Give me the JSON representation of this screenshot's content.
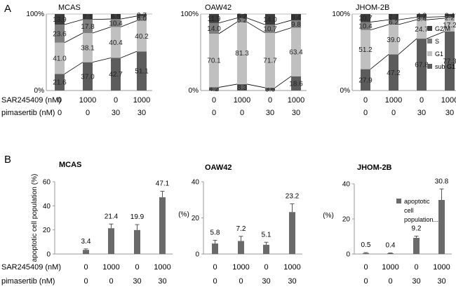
{
  "figure": {
    "panel_a_letter": "A",
    "panel_b_letter": "B",
    "row_labels": {
      "sar": "SAR245409 (nM)",
      "pim": "pimasertib (nM)"
    },
    "conditions": {
      "sar": [
        "0",
        "1000",
        "0",
        "1000"
      ],
      "pim": [
        "0",
        "0",
        "30",
        "30"
      ]
    },
    "colors": {
      "g2m": "#3c3c3c",
      "s": "#7e7e7e",
      "g1": "#c0c0c0",
      "subg1": "#5c5c5c",
      "bar_b": "#6a6a6a"
    }
  },
  "chart_data": [
    {
      "type": "bar",
      "stacked": true,
      "title": "MCAS",
      "categories": [
        "0/0",
        "1000/0",
        "0/30",
        "1000/30"
      ],
      "series": [
        {
          "name": "sub G1",
          "values": [
            21.6,
            37.0,
            42.7,
            51.1
          ]
        },
        {
          "name": "G1",
          "values": [
            41.0,
            38.1,
            40.4,
            40.2
          ]
        },
        {
          "name": "S",
          "values": [
            23.6,
            17.8,
            10.4,
            6.0
          ]
        },
        {
          "name": "G2/M",
          "values": [
            13.9,
            7.1,
            6.5,
            2.7
          ]
        }
      ],
      "ylim": [
        0,
        100
      ],
      "ytick_labels": [
        "0%",
        "100%"
      ]
    },
    {
      "type": "bar",
      "stacked": true,
      "title": "OAW42",
      "categories": [
        "0/0",
        "1000/0",
        "0/30",
        "1000/30"
      ],
      "series": [
        {
          "name": "sub G1",
          "values": [
            4.2,
            8.3,
            3.6,
            18.6
          ]
        },
        {
          "name": "G1",
          "values": [
            70.1,
            81.3,
            71.7,
            63.4
          ]
        },
        {
          "name": "S",
          "values": [
            14.0,
            5.2,
            10.7,
            9.8
          ]
        },
        {
          "name": "G2/M",
          "values": [
            11.9,
            5.2,
            14.0,
            8.4
          ]
        }
      ],
      "ylim": [
        0,
        100
      ],
      "ytick_labels": [
        "0%",
        "100%"
      ]
    },
    {
      "type": "bar",
      "stacked": true,
      "title": "JHOM-2B",
      "categories": [
        "0/0",
        "1000/0",
        "0/30",
        "1000/30"
      ],
      "series": [
        {
          "name": "sub G1",
          "values": [
            27.9,
            47.2,
            67.8,
            77.3
          ]
        },
        {
          "name": "G1",
          "values": [
            51.2,
            39.0,
            24.7,
            17.2
          ]
        },
        {
          "name": "S",
          "values": [
            10.4,
            6.2,
            3.4,
            2.2
          ]
        },
        {
          "name": "G2/M",
          "values": [
            10.7,
            7.7,
            4.2,
            3.4
          ]
        }
      ],
      "ylim": [
        0,
        100
      ],
      "ytick_labels": [
        "0%",
        "100%"
      ],
      "legend": [
        "G2/M",
        "S",
        "G1",
        "sub G1"
      ],
      "legend_position": "right"
    },
    {
      "type": "bar",
      "title": "MCAS",
      "categories": [
        "0/0",
        "1000/0",
        "0/30",
        "1000/30"
      ],
      "values": [
        3.4,
        21.4,
        19.9,
        47.1
      ],
      "errors": [
        0.8,
        3.5,
        4.5,
        5.0
      ],
      "value_labels": [
        "3.4",
        "21.4",
        "19.9",
        "47.1"
      ],
      "ylabel": "apoptotic cell population (%)",
      "ylim": [
        0,
        60
      ],
      "yticks": [
        0,
        20,
        40,
        60
      ]
    },
    {
      "type": "bar",
      "title": "OAW42",
      "categories": [
        "0/0",
        "1000/0",
        "0/30",
        "1000/30"
      ],
      "values": [
        5.8,
        7.2,
        5.1,
        23.2
      ],
      "errors": [
        1.8,
        2.6,
        1.4,
        4.6
      ],
      "value_labels": [
        "5.8",
        "7.2",
        "5.1",
        "23.2"
      ],
      "ylabel": "(%)",
      "ylim": [
        0,
        40
      ],
      "yticks": [
        0,
        20,
        40
      ]
    },
    {
      "type": "bar",
      "title": "JHOM-2B",
      "categories": [
        "0/0",
        "1000/0",
        "0/30",
        "1000/30"
      ],
      "values": [
        0.5,
        0.4,
        9.2,
        30.8
      ],
      "errors": [
        0.3,
        0.2,
        1.0,
        6.3
      ],
      "value_labels": [
        "0.5",
        "0.4",
        "9.2",
        "30.8"
      ],
      "ylabel": "(%)",
      "ylim": [
        0,
        40
      ],
      "yticks": [
        0,
        20,
        40
      ],
      "legend": [
        "apoptotic cell population..."
      ],
      "legend_position": "right"
    }
  ]
}
